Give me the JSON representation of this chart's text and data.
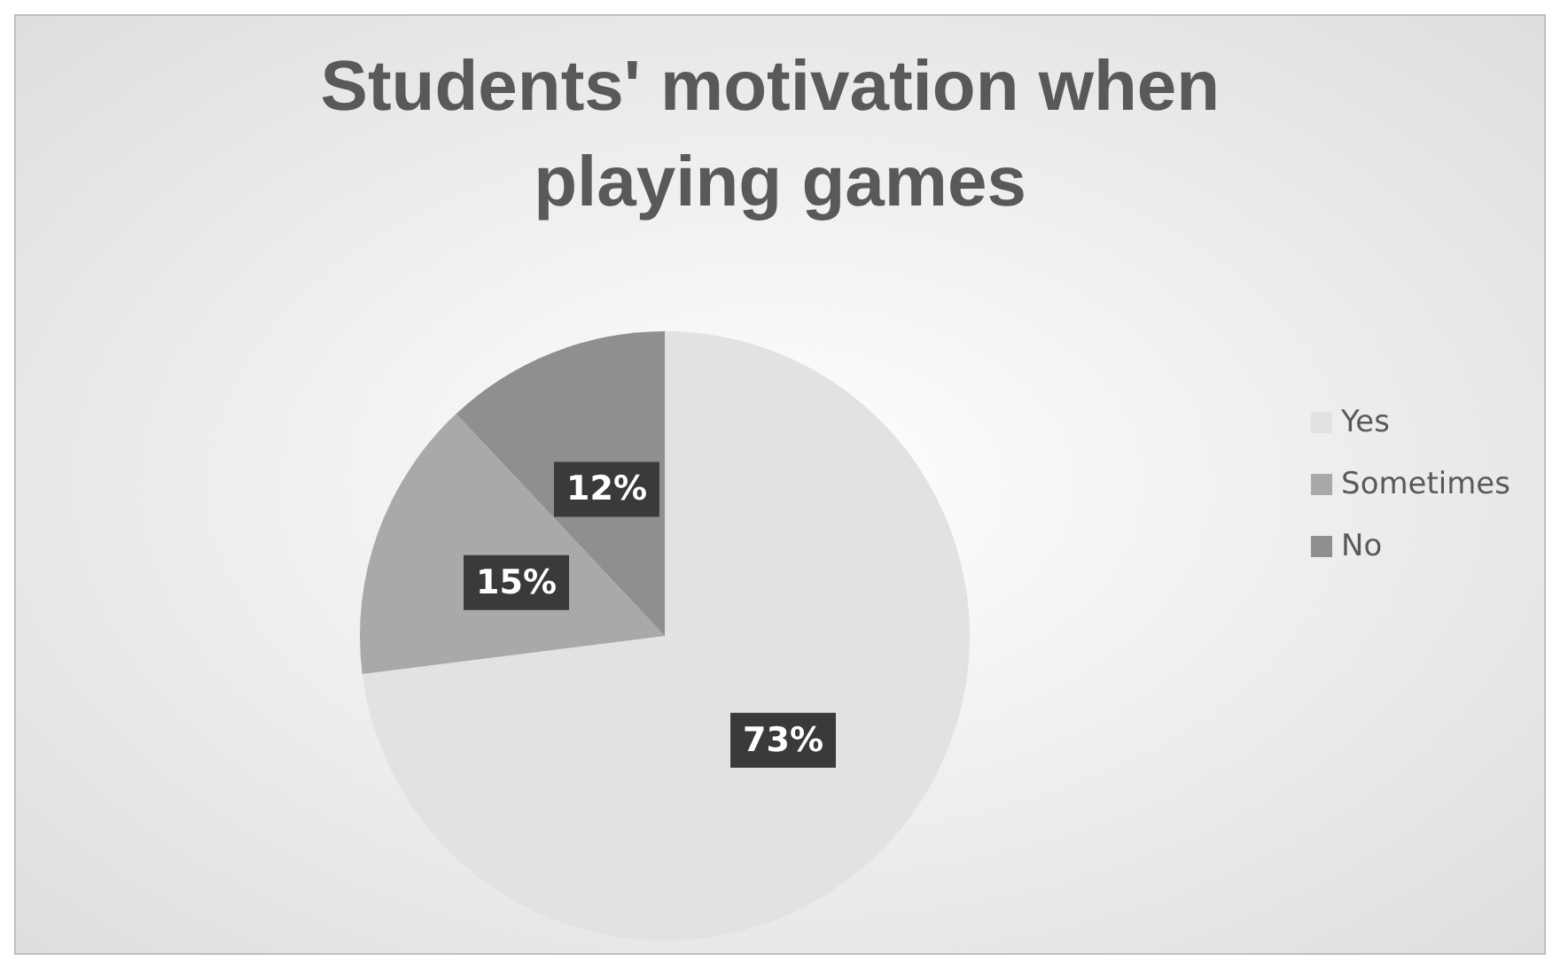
{
  "chart_data": {
    "type": "pie",
    "title": "Students' motivation when playing games",
    "categories": [
      "Yes",
      "Sometimes",
      "No"
    ],
    "values": [
      73,
      15,
      12
    ],
    "value_labels": [
      "73%",
      "15%",
      "12%"
    ],
    "colors": [
      "#e2e2e2",
      "#a9a9a9",
      "#8f8f8f"
    ],
    "legend": "right"
  }
}
